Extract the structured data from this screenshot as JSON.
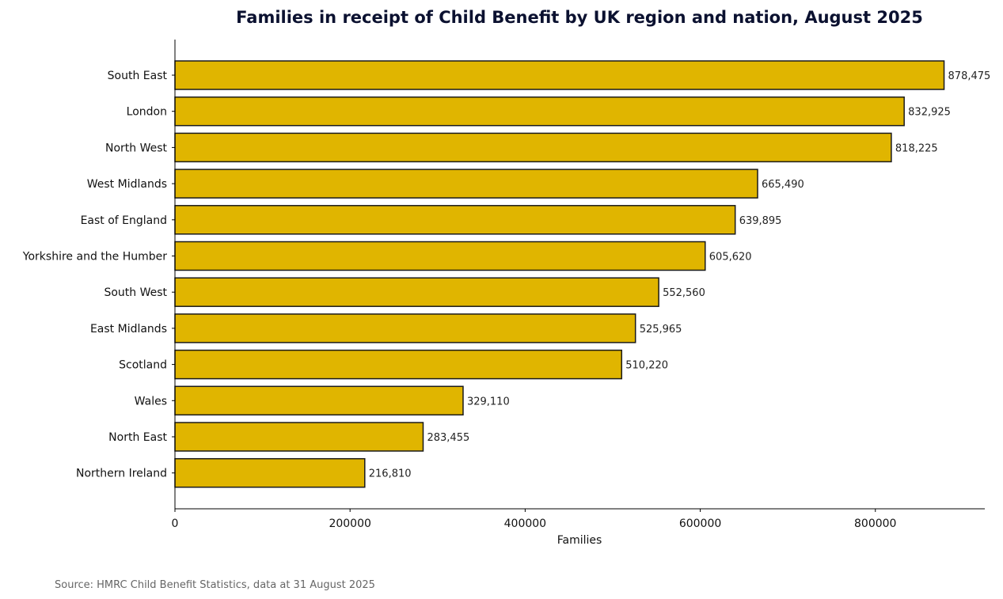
{
  "chart_data": {
    "type": "bar",
    "orientation": "horizontal",
    "title": "Families in receipt of Child Benefit by UK region and nation, August 2025",
    "xlabel": "Families",
    "ylabel": "",
    "xlim": [
      0,
      925000
    ],
    "xticks": [
      0,
      200000,
      400000,
      600000,
      800000
    ],
    "xtick_labels": [
      "0",
      "200000",
      "400000",
      "600000",
      "800000"
    ],
    "categories": [
      "South East",
      "London",
      "North West",
      "West Midlands",
      "East of England",
      "Yorkshire and the Humber",
      "South West",
      "East Midlands",
      "Scotland",
      "Wales",
      "North East",
      "Northern Ireland"
    ],
    "values": [
      878475,
      832925,
      818225,
      665490,
      639895,
      605620,
      552560,
      525965,
      510220,
      329110,
      283455,
      216810
    ],
    "value_labels": [
      "878,475",
      "832,925",
      "818,225",
      "665,490",
      "639,895",
      "605,620",
      "552,560",
      "525,965",
      "510,220",
      "329,110",
      "283,455",
      "216,810"
    ],
    "grid": false,
    "legend": "none",
    "bar_color": "#e0b500",
    "bar_edge_color": "#1a1a1a",
    "source": "Source: HMRC Child Benefit Statistics, data at 31 August 2025"
  }
}
